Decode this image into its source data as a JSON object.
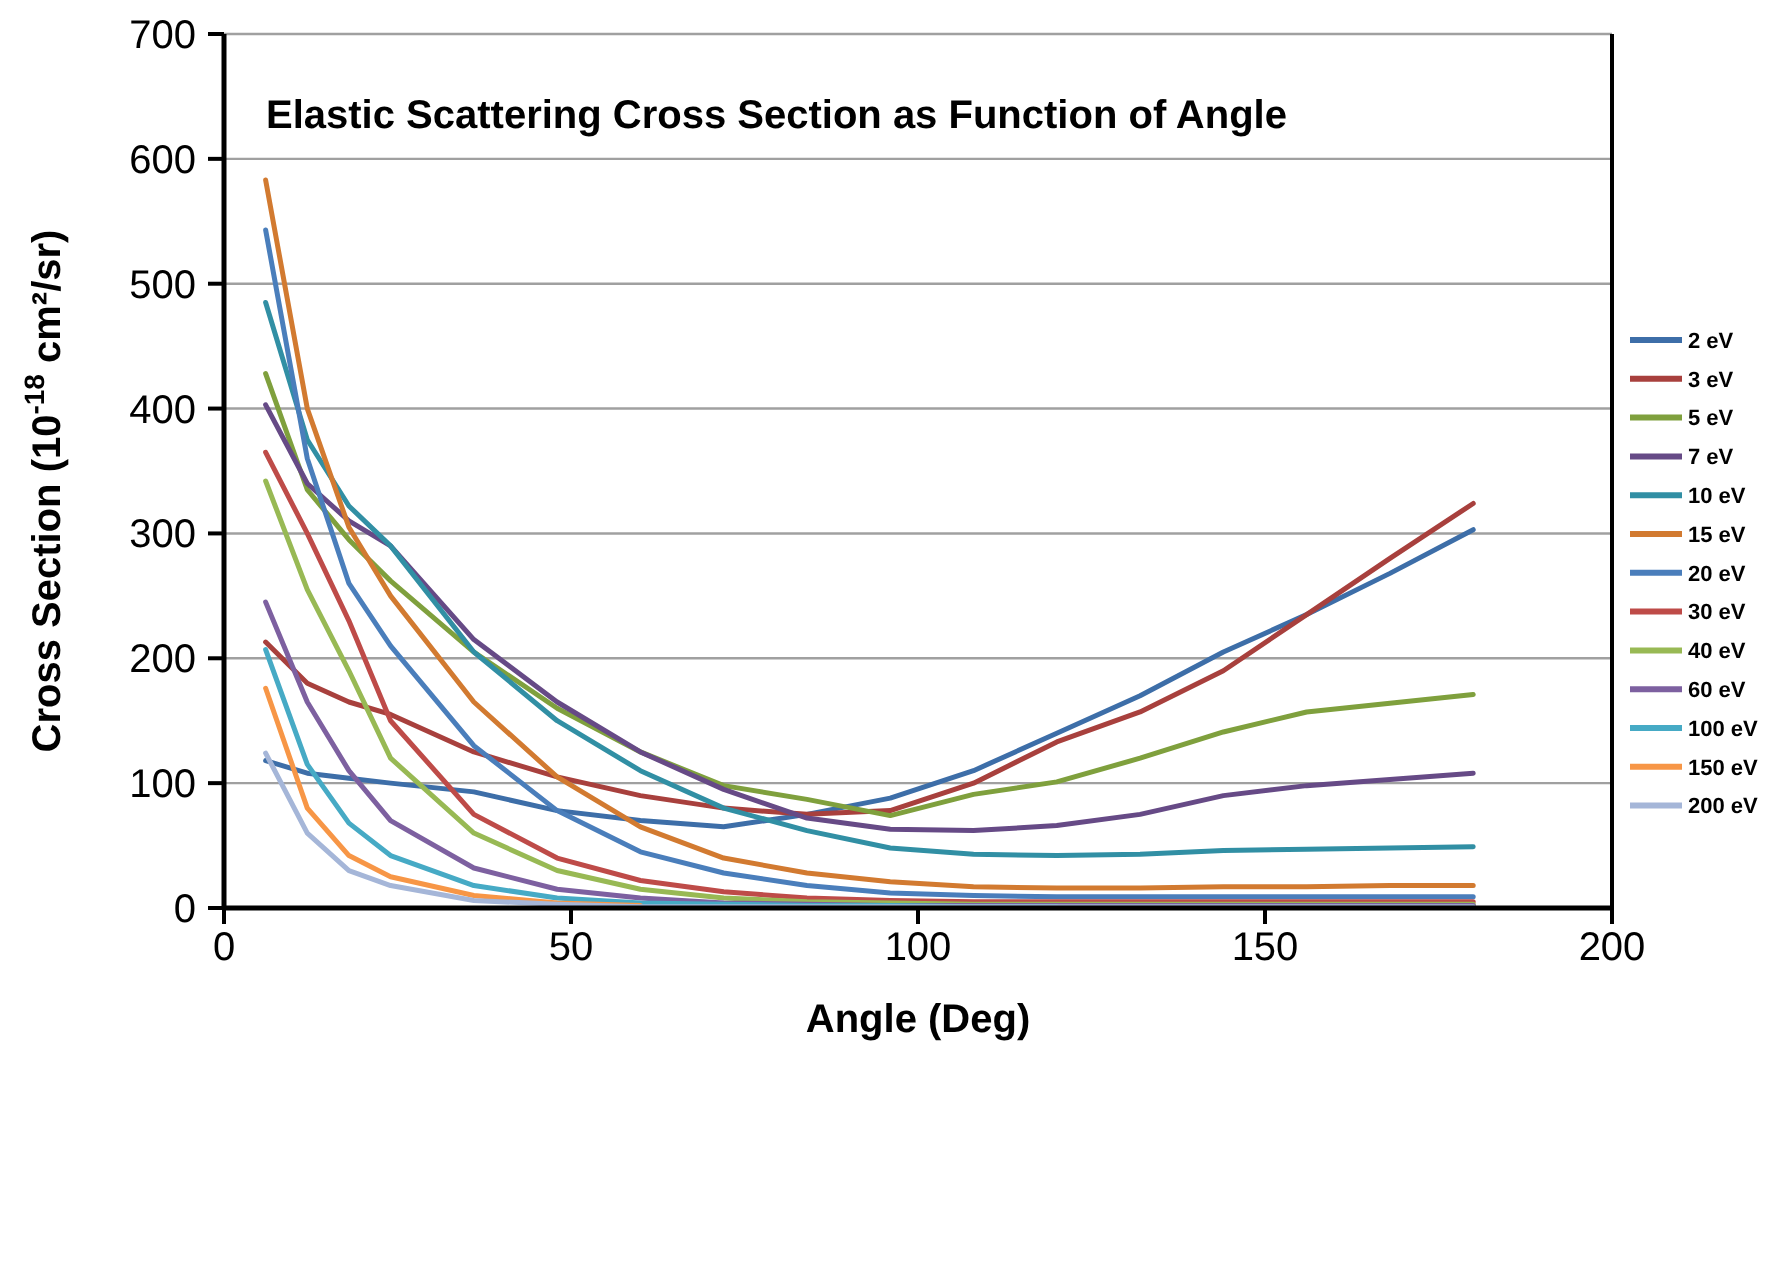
{
  "chart_data": {
    "type": "line",
    "title": "Elastic Scattering Cross Section as Function of Angle",
    "xlabel": "Angle (Deg)",
    "ylabel": "Cross Section (10$^{-18}$ cm²/sr)",
    "x": [
      6,
      12,
      18,
      24,
      36,
      48,
      60,
      72,
      84,
      96,
      108,
      120,
      132,
      144,
      156,
      168,
      180
    ],
    "xlim": [
      0,
      200
    ],
    "xticks": [
      0,
      50,
      100,
      150,
      200
    ],
    "ylim": [
      0,
      700
    ],
    "yticks": [
      0,
      100,
      200,
      300,
      400,
      500,
      600,
      700
    ],
    "grid": "y",
    "legend": "right",
    "marker": "none",
    "line_style": "solid",
    "series": [
      {
        "name": "2 eV",
        "color": "#3d6ea8",
        "values": [
          118,
          108,
          104,
          100,
          93,
          78,
          70,
          65,
          75,
          88,
          110,
          140,
          170,
          205,
          235,
          268,
          303
        ]
      },
      {
        "name": "3 eV",
        "color": "#a8403d",
        "values": [
          213,
          180,
          165,
          155,
          125,
          105,
          90,
          80,
          75,
          78,
          100,
          133,
          157,
          190,
          235,
          280,
          324
        ]
      },
      {
        "name": "5 eV",
        "color": "#7fa03d",
        "values": [
          428,
          335,
          295,
          262,
          205,
          160,
          125,
          98,
          87,
          74,
          91,
          101,
          120,
          141,
          157,
          164,
          171
        ]
      },
      {
        "name": "7 eV",
        "color": "#664a86",
        "values": [
          403,
          340,
          310,
          290,
          215,
          165,
          125,
          95,
          72,
          63,
          62,
          66,
          75,
          90,
          98,
          103,
          108
        ]
      },
      {
        "name": "10 eV",
        "color": "#318fa4",
        "values": [
          485,
          375,
          322,
          290,
          205,
          150,
          110,
          80,
          62,
          48,
          43,
          42,
          43,
          46,
          47,
          48,
          49
        ]
      },
      {
        "name": "15 eV",
        "color": "#d27a30",
        "values": [
          583,
          400,
          305,
          250,
          165,
          105,
          65,
          40,
          28,
          21,
          17,
          16,
          16,
          17,
          17,
          18,
          18
        ]
      },
      {
        "name": "20 eV",
        "color": "#4a7ebb",
        "values": [
          543,
          360,
          260,
          210,
          130,
          78,
          45,
          28,
          18,
          12,
          10,
          9,
          9,
          9,
          9,
          9,
          9
        ]
      },
      {
        "name": "30 eV",
        "color": "#be4b48",
        "values": [
          365,
          300,
          230,
          150,
          75,
          40,
          22,
          13,
          8,
          6,
          5,
          5,
          5,
          5,
          5,
          5,
          5
        ]
      },
      {
        "name": "40 eV",
        "color": "#98b954",
        "values": [
          342,
          255,
          190,
          120,
          60,
          30,
          15,
          8,
          5,
          4,
          3,
          3,
          3,
          3,
          3,
          3,
          3
        ]
      },
      {
        "name": "60 eV",
        "color": "#7d60a0",
        "values": [
          245,
          165,
          110,
          70,
          32,
          15,
          8,
          4,
          3,
          2,
          2,
          2,
          2,
          2,
          2,
          2,
          2
        ]
      },
      {
        "name": "100 eV",
        "color": "#46aac5",
        "values": [
          207,
          115,
          68,
          42,
          18,
          8,
          4,
          3,
          2,
          2,
          1,
          1,
          null,
          null,
          null,
          null,
          null
        ]
      },
      {
        "name": "150 eV",
        "color": "#f79646",
        "values": [
          176,
          80,
          42,
          25,
          10,
          4,
          2,
          null,
          null,
          null,
          null,
          null,
          null,
          null,
          null,
          null,
          null
        ]
      },
      {
        "name": "200 eV",
        "color": "#a5b6d8",
        "values": [
          124,
          60,
          30,
          18,
          6,
          3,
          1,
          1,
          1,
          1,
          1,
          1,
          1,
          1,
          1,
          1,
          1
        ]
      }
    ]
  }
}
